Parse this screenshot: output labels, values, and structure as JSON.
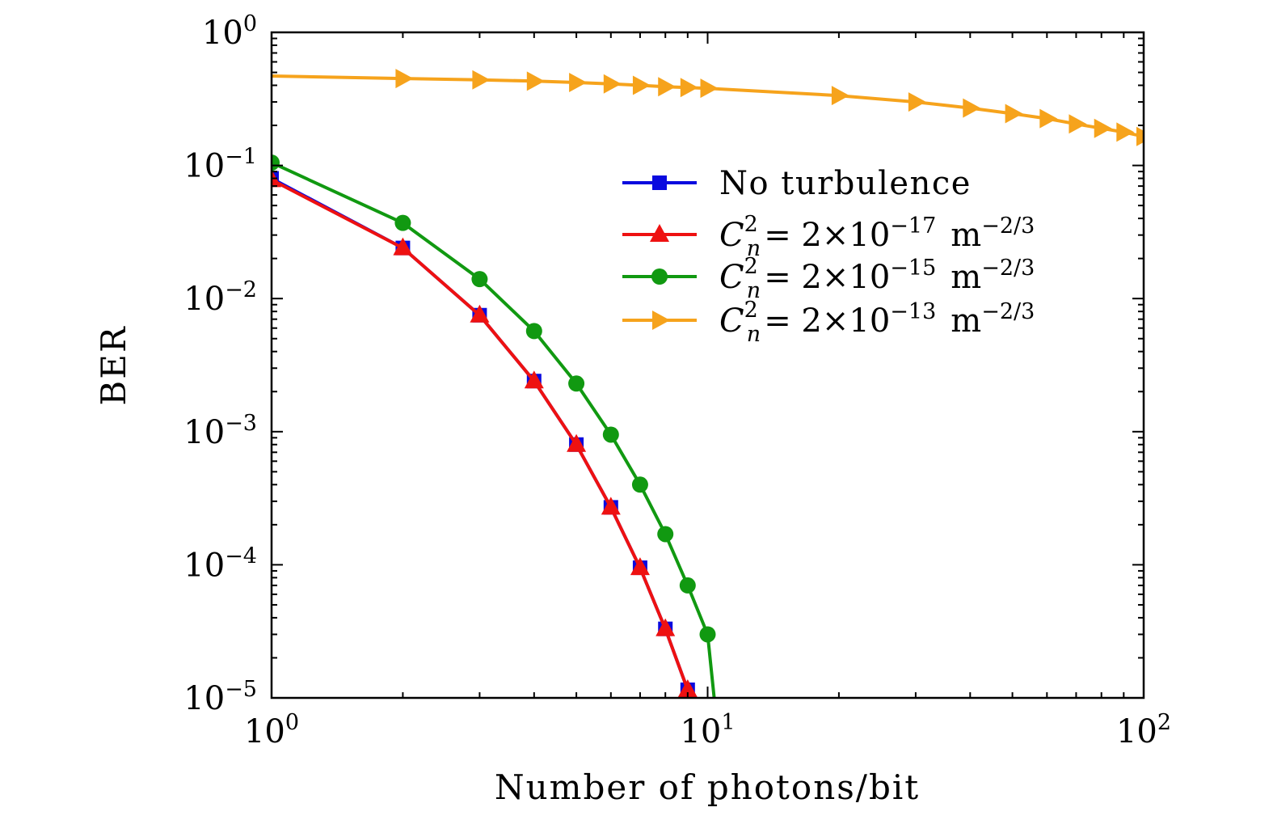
{
  "chart_data": {
    "type": "line",
    "xscale": "log",
    "yscale": "log",
    "xlabel": "Number of photons/bit",
    "ylabel": "BER",
    "xlim": [
      1,
      100
    ],
    "ylim": [
      1e-05,
      1
    ],
    "x_ticks": [
      {
        "value": 1,
        "base": "10",
        "exp": "0"
      },
      {
        "value": 10,
        "base": "10",
        "exp": "1"
      },
      {
        "value": 100,
        "base": "10",
        "exp": "2"
      }
    ],
    "y_ticks": [
      {
        "value": 1,
        "base": "10",
        "exp": "0"
      },
      {
        "value": 0.1,
        "base": "10",
        "exp": "−1"
      },
      {
        "value": 0.01,
        "base": "10",
        "exp": "−2"
      },
      {
        "value": 0.001,
        "base": "10",
        "exp": "−3"
      },
      {
        "value": 0.0001,
        "base": "10",
        "exp": "−4"
      },
      {
        "value": 1e-05,
        "base": "10",
        "exp": "−5"
      }
    ],
    "legend_position": "upper-right",
    "series": [
      {
        "name": "No turbulence",
        "color": "#0a0adf",
        "marker": "square",
        "x": [
          1,
          2,
          3,
          4,
          5,
          6,
          7,
          8,
          9,
          9.15
        ],
        "y": [
          0.08,
          0.024,
          0.0075,
          0.0024,
          0.0008,
          0.00027,
          9.5e-05,
          3.3e-05,
          1.15e-05,
          1e-05
        ],
        "markers_at": [
          1,
          2,
          3,
          4,
          5,
          6,
          7,
          8,
          9
        ]
      },
      {
        "name": "C_n^2 = 2×10^-17 m^-2/3",
        "legend": {
          "sym": "C",
          "sub": "n",
          "sup": "2",
          "eq": "= 2×10",
          "exp": "−17",
          "unit": "m",
          "unit_exp": "−2/3"
        },
        "color": "#ee1111",
        "marker": "triangle",
        "x": [
          1,
          2,
          3,
          4,
          5,
          6,
          7,
          8,
          9,
          9.15
        ],
        "y": [
          0.078,
          0.024,
          0.0075,
          0.0024,
          0.0008,
          0.00027,
          9.5e-05,
          3.3e-05,
          1.15e-05,
          1e-05
        ],
        "markers_at": [
          1,
          2,
          3,
          4,
          5,
          6,
          7,
          8,
          9
        ]
      },
      {
        "name": "C_n^2 = 2×10^-15 m^-2/3",
        "legend": {
          "sym": "C",
          "sub": "n",
          "sup": "2",
          "eq": "= 2×10",
          "exp": "−15",
          "unit": "m",
          "unit_exp": "−2/3"
        },
        "color": "#119911",
        "marker": "circle",
        "x": [
          1,
          2,
          3,
          4,
          5,
          6,
          7,
          8,
          9,
          10,
          10.35
        ],
        "y": [
          0.105,
          0.037,
          0.014,
          0.0057,
          0.0023,
          0.00095,
          0.0004,
          0.00017,
          7e-05,
          3e-05,
          1e-05
        ],
        "markers_at": [
          1,
          2,
          3,
          4,
          5,
          6,
          7,
          8,
          9,
          10
        ]
      },
      {
        "name": "C_n^2 = 2×10^-13 m^-2/3",
        "legend": {
          "sym": "C",
          "sub": "n",
          "sup": "2",
          "eq": "= 2×10",
          "exp": "−13",
          "unit": "m",
          "unit_exp": "−2/3"
        },
        "color": "#f6a31c",
        "marker": "triangle-right",
        "x": [
          1,
          2,
          3,
          4,
          5,
          6,
          7,
          8,
          9,
          10,
          20,
          30,
          40,
          50,
          60,
          70,
          80,
          90,
          100
        ],
        "y": [
          0.47,
          0.45,
          0.44,
          0.43,
          0.42,
          0.41,
          0.4,
          0.39,
          0.385,
          0.38,
          0.335,
          0.3,
          0.27,
          0.245,
          0.225,
          0.205,
          0.19,
          0.178,
          0.165
        ],
        "markers_at": [
          2,
          3,
          4,
          5,
          6,
          7,
          8,
          9,
          10,
          20,
          30,
          40,
          50,
          60,
          70,
          80,
          90,
          100
        ]
      }
    ]
  }
}
